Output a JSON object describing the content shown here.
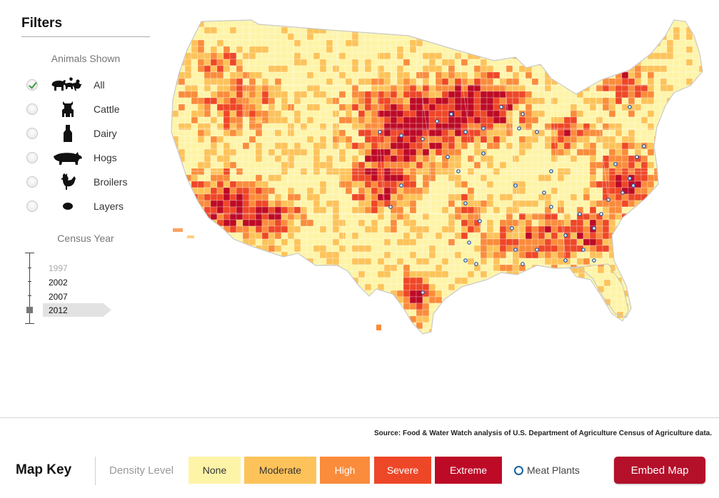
{
  "filters": {
    "title": "Filters",
    "animals_heading": "Animals Shown",
    "animals": [
      {
        "label": "All",
        "checked": true,
        "icon": "all-animals-icon"
      },
      {
        "label": "Cattle",
        "checked": false,
        "icon": "cattle-icon"
      },
      {
        "label": "Dairy",
        "checked": false,
        "icon": "milk-bottle-icon"
      },
      {
        "label": "Hogs",
        "checked": false,
        "icon": "hog-icon"
      },
      {
        "label": "Broilers",
        "checked": false,
        "icon": "chicken-icon"
      },
      {
        "label": "Layers",
        "checked": false,
        "icon": "egg-icon"
      }
    ],
    "census_heading": "Census Year",
    "years": [
      "1997",
      "2002",
      "2007",
      "2012"
    ],
    "selected_year": "2012"
  },
  "map": {
    "colors": {
      "none": "#fef4a8",
      "moderate": "#fdc35a",
      "high": "#fa8c3c",
      "severe": "#ee4728",
      "extreme": "#bd0a26",
      "plant": "#1a4f9a",
      "border": "#c9c9c9"
    }
  },
  "footer": {
    "source": "Source: Food & Water Watch analysis of U.S. Department of Agriculture Census of Agriculture data.",
    "map_key_title": "Map Key",
    "density_label": "Density Level",
    "levels": [
      {
        "label": "None",
        "color": "#fef4a8",
        "text_color": "#333333"
      },
      {
        "label": "Moderate",
        "color": "#fdc35a",
        "text_color": "#333333"
      },
      {
        "label": "High",
        "color": "#fa8c3c",
        "text_color": "#ffffff"
      },
      {
        "label": "Severe",
        "color": "#ee4728",
        "text_color": "#ffffff"
      },
      {
        "label": "Extreme",
        "color": "#bd0a26",
        "text_color": "#ffffff"
      }
    ],
    "meat_plants_label": "Meat Plants",
    "embed_button": "Embed Map"
  }
}
